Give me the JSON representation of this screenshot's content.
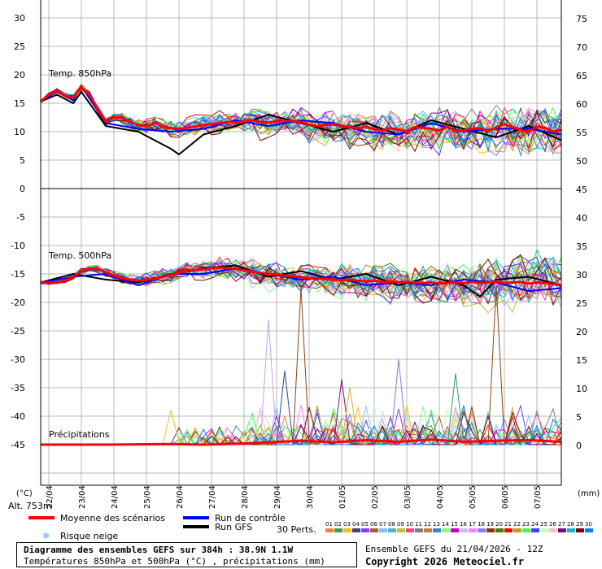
{
  "chart_data": {
    "type": "line",
    "x_labels": [
      "22/04",
      "23/04",
      "24/04",
      "25/04",
      "26/04",
      "27/04",
      "28/04",
      "29/04",
      "30/04",
      "01/05",
      "02/05",
      "03/05",
      "04/05",
      "05/05",
      "06/05",
      "07/05"
    ],
    "x_range_hours": [
      0,
      384
    ],
    "panels": [
      {
        "label": "Temp. 850hPa",
        "y_left_ticks": [
          30,
          25,
          20,
          15,
          10,
          5,
          0
        ],
        "ylim": [
          0,
          30
        ],
        "mean": [
          [
            0,
            15.3
          ],
          [
            6,
            16.5
          ],
          [
            12,
            17.2
          ],
          [
            18,
            16.3
          ],
          [
            24,
            16.0
          ],
          [
            30,
            17.8
          ],
          [
            36,
            16.5
          ],
          [
            42,
            14.0
          ],
          [
            48,
            11.8
          ],
          [
            54,
            12.5
          ],
          [
            60,
            12.5
          ],
          [
            66,
            11.7
          ],
          [
            72,
            11.2
          ],
          [
            78,
            10.9
          ],
          [
            84,
            11.6
          ],
          [
            90,
            10.9
          ],
          [
            96,
            10.6
          ],
          [
            102,
            10.5
          ],
          [
            108,
            10.7
          ],
          [
            114,
            10.9
          ],
          [
            120,
            11.2
          ],
          [
            126,
            11.3
          ],
          [
            132,
            11.5
          ],
          [
            138,
            11.7
          ],
          [
            144,
            11.6
          ],
          [
            150,
            11.8
          ],
          [
            156,
            12.0
          ],
          [
            162,
            11.7
          ],
          [
            168,
            11.6
          ],
          [
            174,
            11.8
          ],
          [
            180,
            11.9
          ],
          [
            186,
            11.9
          ],
          [
            192,
            11.7
          ],
          [
            198,
            11.2
          ],
          [
            204,
            11.0
          ],
          [
            210,
            11.2
          ],
          [
            216,
            11.3
          ],
          [
            222,
            11.0
          ],
          [
            228,
            10.8
          ],
          [
            234,
            10.6
          ],
          [
            240,
            10.9
          ],
          [
            246,
            10.4
          ],
          [
            252,
            10.2
          ],
          [
            258,
            10.6
          ],
          [
            264,
            10.4
          ],
          [
            270,
            10.0
          ],
          [
            276,
            10.8
          ],
          [
            282,
            10.7
          ],
          [
            288,
            10.5
          ],
          [
            294,
            10.2
          ],
          [
            300,
            10.9
          ],
          [
            306,
            10.1
          ],
          [
            312,
            10.2
          ],
          [
            318,
            10.5
          ],
          [
            324,
            10.6
          ],
          [
            330,
            10.1
          ],
          [
            336,
            10.7
          ],
          [
            342,
            11.3
          ],
          [
            348,
            10.8
          ],
          [
            354,
            10.3
          ],
          [
            360,
            10.0
          ],
          [
            366,
            10.9
          ],
          [
            372,
            10.7
          ],
          [
            378,
            10.0
          ],
          [
            384,
            10.3
          ]
        ],
        "control": [
          [
            0,
            15.3
          ],
          [
            12,
            17.0
          ],
          [
            24,
            15.5
          ],
          [
            30,
            18.0
          ],
          [
            48,
            11.5
          ],
          [
            72,
            10.5
          ],
          [
            96,
            10.0
          ],
          [
            120,
            10.5
          ],
          [
            144,
            12.0
          ],
          [
            168,
            11.0
          ],
          [
            192,
            12.0
          ],
          [
            216,
            11.5
          ],
          [
            240,
            10.0
          ],
          [
            264,
            9.5
          ],
          [
            288,
            11.5
          ],
          [
            312,
            10.0
          ],
          [
            336,
            10.5
          ],
          [
            360,
            10.5
          ],
          [
            384,
            9.5
          ]
        ],
        "gfs": [
          [
            0,
            15.3
          ],
          [
            12,
            16.5
          ],
          [
            24,
            15.0
          ],
          [
            30,
            17.0
          ],
          [
            48,
            11.0
          ],
          [
            72,
            10.0
          ],
          [
            96,
            7.0
          ],
          [
            102,
            6.0
          ],
          [
            120,
            9.5
          ],
          [
            144,
            11.0
          ],
          [
            168,
            13.0
          ],
          [
            192,
            11.5
          ],
          [
            216,
            10.0
          ],
          [
            240,
            11.5
          ],
          [
            264,
            9.5
          ],
          [
            288,
            12.0
          ],
          [
            312,
            10.5
          ],
          [
            336,
            9.0
          ],
          [
            360,
            11.0
          ],
          [
            384,
            8.5
          ]
        ]
      },
      {
        "label": "Temp. 500hPa",
        "y_left_ticks": [
          0,
          -5,
          -10,
          -15,
          -20,
          -25,
          -30,
          -35,
          -40,
          -45
        ],
        "ylim": [
          -45,
          0
        ],
        "mean": [
          [
            0,
            -16.5
          ],
          [
            6,
            -16.6
          ],
          [
            12,
            -16.5
          ],
          [
            18,
            -16.2
          ],
          [
            24,
            -15.5
          ],
          [
            30,
            -14.5
          ],
          [
            36,
            -14.0
          ],
          [
            42,
            -14.1
          ],
          [
            48,
            -14.7
          ],
          [
            54,
            -15.3
          ],
          [
            60,
            -15.7
          ],
          [
            66,
            -16.0
          ],
          [
            72,
            -16.2
          ],
          [
            78,
            -16.0
          ],
          [
            84,
            -15.8
          ],
          [
            90,
            -15.5
          ],
          [
            96,
            -15.2
          ],
          [
            102,
            -14.8
          ],
          [
            108,
            -14.4
          ],
          [
            114,
            -14.3
          ],
          [
            120,
            -14.2
          ],
          [
            126,
            -14.0
          ],
          [
            132,
            -13.9
          ],
          [
            138,
            -14.0
          ],
          [
            144,
            -14.1
          ],
          [
            150,
            -14.4
          ],
          [
            156,
            -14.6
          ],
          [
            162,
            -14.8
          ],
          [
            168,
            -15.0
          ],
          [
            174,
            -15.1
          ],
          [
            180,
            -15.3
          ],
          [
            186,
            -15.4
          ],
          [
            192,
            -15.6
          ],
          [
            198,
            -15.7
          ],
          [
            204,
            -15.8
          ],
          [
            210,
            -15.9
          ],
          [
            216,
            -16.0
          ],
          [
            222,
            -16.1
          ],
          [
            228,
            -16.0
          ],
          [
            234,
            -16.2
          ],
          [
            240,
            -16.3
          ],
          [
            246,
            -16.2
          ],
          [
            252,
            -16.4
          ],
          [
            258,
            -16.3
          ],
          [
            264,
            -16.5
          ],
          [
            270,
            -16.4
          ],
          [
            276,
            -16.5
          ],
          [
            282,
            -16.6
          ],
          [
            288,
            -16.5
          ],
          [
            294,
            -16.7
          ],
          [
            300,
            -16.6
          ],
          [
            306,
            -16.5
          ],
          [
            312,
            -16.6
          ],
          [
            318,
            -16.4
          ],
          [
            324,
            -16.6
          ],
          [
            330,
            -16.5
          ],
          [
            336,
            -16.3
          ],
          [
            342,
            -16.6
          ],
          [
            348,
            -16.5
          ],
          [
            354,
            -16.4
          ],
          [
            360,
            -16.7
          ],
          [
            366,
            -16.5
          ],
          [
            372,
            -16.6
          ],
          [
            378,
            -16.8
          ],
          [
            384,
            -17.0
          ]
        ],
        "control": [
          [
            0,
            -16.5
          ],
          [
            24,
            -15.5
          ],
          [
            48,
            -15.0
          ],
          [
            72,
            -17.0
          ],
          [
            96,
            -15.0
          ],
          [
            120,
            -15.0
          ],
          [
            144,
            -14.0
          ],
          [
            168,
            -15.0
          ],
          [
            192,
            -16.0
          ],
          [
            216,
            -15.5
          ],
          [
            240,
            -17.0
          ],
          [
            264,
            -16.5
          ],
          [
            288,
            -17.0
          ],
          [
            312,
            -16.0
          ],
          [
            336,
            -16.5
          ],
          [
            360,
            -18.0
          ],
          [
            384,
            -17.5
          ]
        ],
        "gfs": [
          [
            0,
            -16.5
          ],
          [
            24,
            -15.0
          ],
          [
            48,
            -16.0
          ],
          [
            72,
            -16.5
          ],
          [
            96,
            -15.0
          ],
          [
            120,
            -14.0
          ],
          [
            144,
            -13.5
          ],
          [
            168,
            -15.5
          ],
          [
            192,
            -14.5
          ],
          [
            216,
            -16.0
          ],
          [
            240,
            -15.0
          ],
          [
            264,
            -17.0
          ],
          [
            288,
            -15.5
          ],
          [
            312,
            -17.0
          ],
          [
            324,
            -19.0
          ],
          [
            336,
            -16.0
          ],
          [
            360,
            -15.5
          ],
          [
            384,
            -17.0
          ]
        ]
      },
      {
        "label": "Précipitations",
        "y_right_ticks": [
          0,
          5,
          10,
          15,
          20,
          25
        ],
        "unit": "mm",
        "mean": [
          [
            0,
            0
          ],
          [
            48,
            0
          ],
          [
            96,
            0.1
          ],
          [
            120,
            0
          ],
          [
            150,
            0.2
          ],
          [
            168,
            0.4
          ],
          [
            192,
            0.7
          ],
          [
            216,
            0.4
          ],
          [
            240,
            0.8
          ],
          [
            264,
            0.5
          ],
          [
            288,
            0.9
          ],
          [
            312,
            0.5
          ],
          [
            336,
            0.7
          ],
          [
            360,
            0.8
          ],
          [
            384,
            0.5
          ]
        ],
        "peaks": [
          {
            "h": 168,
            "v": 22.0,
            "color": "#c8a0e6"
          },
          {
            "h": 192,
            "v": 27.5,
            "color": "#8b4513"
          },
          {
            "h": 180,
            "v": 13.0,
            "color": "#1f4e96"
          },
          {
            "h": 222,
            "v": 11.5,
            "color": "#7b0f7b"
          },
          {
            "h": 264,
            "v": 15.0,
            "color": "#9370db"
          },
          {
            "h": 336,
            "v": 28.0,
            "color": "#8b4513"
          },
          {
            "h": 306,
            "v": 12.5,
            "color": "#1f9e6e"
          },
          {
            "h": 228,
            "v": 10.0,
            "color": "#e6b020"
          },
          {
            "h": 96,
            "v": 6.0,
            "color": "#e6c800"
          }
        ]
      }
    ],
    "y_right_ticks_temp": [
      75,
      70,
      65,
      60,
      55,
      50,
      45,
      40,
      35,
      30,
      25,
      20,
      15,
      10,
      5,
      0
    ],
    "left_unit": "(°C)",
    "right_unit": "(mm)",
    "altitude": "Alt. 753m",
    "legend": {
      "mean": "Moyenne des scénarios",
      "control": "Run de contrôle",
      "gfs": "Run GFS",
      "snow": "Risque neige",
      "perts": "30 Perts."
    },
    "perturbations": [
      "01",
      "02",
      "03",
      "04",
      "05",
      "06",
      "07",
      "08",
      "09",
      "10",
      "11",
      "12",
      "13",
      "14",
      "15",
      "16",
      "17",
      "18",
      "19",
      "20",
      "21",
      "22",
      "23",
      "24",
      "25",
      "26",
      "27",
      "28",
      "29",
      "30"
    ],
    "pert_colors": [
      "#ff8040",
      "#40a040",
      "#ffc000",
      "#404080",
      "#8040ff",
      "#a06040",
      "#80c0ff",
      "#40c0c0",
      "#c0c040",
      "#ff4080",
      "#808080",
      "#c08040",
      "#4080c0",
      "#80ff80",
      "#c000c0",
      "#c0c0ff",
      "#ff80ff",
      "#8080ff",
      "#804000",
      "#408000",
      "#ff0000",
      "#c0a000",
      "#40ff40",
      "#4040ff",
      "#c0ffc0",
      "#ffc0c0",
      "#800080",
      "#00c0c0",
      "#800000",
      "#0080ff"
    ],
    "colors": {
      "mean": "#ff0000",
      "control": "#0000ff",
      "gfs": "#000000"
    }
  },
  "footer": {
    "title": "Diagramme des ensembles GEFS sur 384h : 38.9N 1.1W",
    "subtitle": "Températures 850hPa et 500hPa (°C) , précipitations (mm)",
    "ensemble": "Ensemble GEFS du 21/04/2026 - 12Z",
    "copyright": "Copyright 2026 Meteociel.fr"
  }
}
